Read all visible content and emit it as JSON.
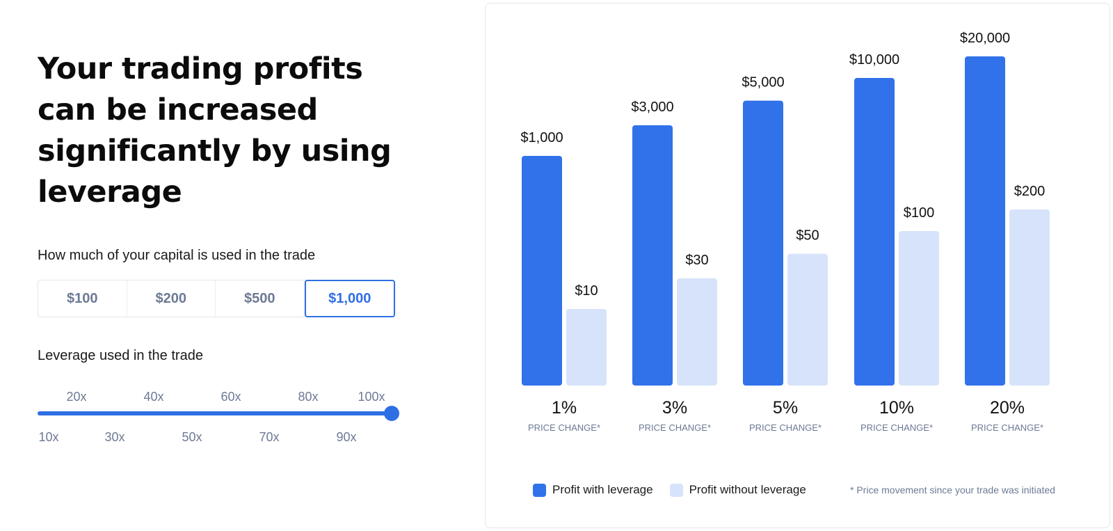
{
  "headline": "Your trading profits can be increased significantly by using leverage",
  "capital": {
    "label": "How much of your capital is used in the trade",
    "options": [
      "$100",
      "$200",
      "$500",
      "$1,000"
    ],
    "selected": "$1,000"
  },
  "leverage": {
    "label": "Leverage used in the trade",
    "top_ticks": [
      "20x",
      "40x",
      "60x",
      "80x",
      "100x"
    ],
    "bottom_ticks": [
      "10x",
      "30x",
      "50x",
      "70x",
      "90x"
    ],
    "selected": "100x"
  },
  "chart_data": {
    "type": "bar",
    "categories": [
      "1%",
      "3%",
      "5%",
      "10%",
      "20%"
    ],
    "category_sublabel": "PRICE CHANGE*",
    "series": [
      {
        "name": "Profit with leverage",
        "values": [
          1000,
          3000,
          5000,
          10000,
          20000
        ],
        "labels": [
          "$1,000",
          "$3,000",
          "$5,000",
          "$10,000",
          "$20,000"
        ],
        "color": "#3172ea"
      },
      {
        "name": "Profit without leverage",
        "values": [
          10,
          30,
          50,
          100,
          200
        ],
        "labels": [
          "$10",
          "$30",
          "$50",
          "$100",
          "$200"
        ],
        "color": "#d6e3fa"
      }
    ],
    "footnote": "* Price movement since your trade was initiated"
  }
}
